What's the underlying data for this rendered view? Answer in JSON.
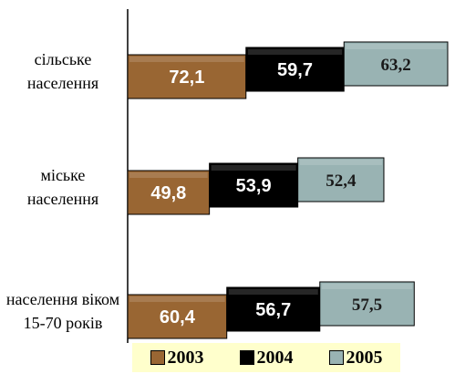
{
  "chart_data": {
    "type": "bar",
    "orientation": "horizontal",
    "stacked": true,
    "categories": [
      "сільське населення",
      "міське населення",
      "населення віком 15-70 років"
    ],
    "series": [
      {
        "name": "2003",
        "color": "#996633",
        "values": [
          72.1,
          49.8,
          60.4
        ],
        "value_labels": [
          "72,1",
          "49,8",
          "60,4"
        ]
      },
      {
        "name": "2004",
        "color": "#000000",
        "values": [
          59.7,
          53.9,
          56.7
        ],
        "value_labels": [
          "59,7",
          "53,9",
          "56,7"
        ]
      },
      {
        "name": "2005",
        "color": "#99b3b3",
        "values": [
          63.2,
          52.4,
          57.5
        ],
        "value_labels": [
          "63,2",
          "52,4",
          "57,5"
        ]
      }
    ],
    "legend": "bottom"
  }
}
